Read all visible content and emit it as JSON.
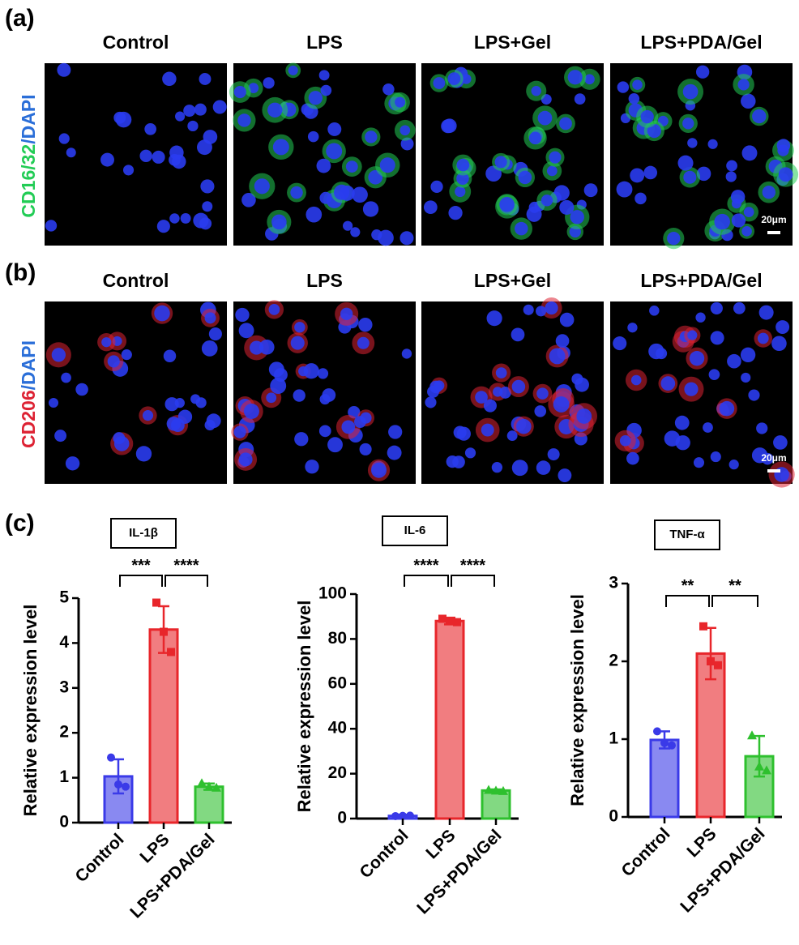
{
  "panel_a": {
    "label": "(a)",
    "columns": [
      "Control",
      "LPS",
      "LPS+Gel",
      "LPS+PDA/Gel"
    ],
    "row_label": [
      "CD16/32",
      "/DAPI"
    ],
    "scale_bar": "20μm"
  },
  "panel_b": {
    "label": "(b)",
    "columns": [
      "Control",
      "LPS",
      "LPS+Gel",
      "LPS+PDA/Gel"
    ],
    "row_label": [
      "CD206",
      "/DAPI"
    ],
    "scale_bar": "20μm"
  },
  "panel_c": {
    "label": "(c)"
  },
  "chart_data": [
    {
      "type": "bar",
      "title": "IL-1β",
      "y_label": "Relative expression level",
      "categories": [
        "Control",
        "LPS",
        "LPS+PDA/Gel"
      ],
      "values": [
        1.03,
        4.3,
        0.8
      ],
      "errors": [
        0.38,
        0.52,
        0.07
      ],
      "points": [
        [
          1.45,
          0.85,
          0.8
        ],
        [
          4.9,
          4.25,
          3.8
        ],
        [
          0.88,
          0.8,
          0.78
        ]
      ],
      "colors": [
        "#3a3ae8",
        "#e8262b",
        "#2ec02e"
      ],
      "ylim": [
        0,
        5
      ],
      "yticks": [
        0,
        1,
        2,
        3,
        4,
        5
      ],
      "significance": [
        "***",
        "****"
      ]
    },
    {
      "type": "bar",
      "title": "IL-6",
      "y_label": "Relative expression level",
      "categories": [
        "Control",
        "LPS",
        "LPS+PDA/Gel"
      ],
      "values": [
        1.2,
        88,
        12.5
      ],
      "errors": [
        0.5,
        1.5,
        0.5
      ],
      "points": [
        [
          1.1,
          1.2,
          1.3
        ],
        [
          89,
          88,
          87.5
        ],
        [
          12.8,
          12.5,
          12.3
        ]
      ],
      "colors": [
        "#3a3ae8",
        "#e8262b",
        "#2ec02e"
      ],
      "ylim": [
        0,
        100
      ],
      "yticks": [
        0,
        20,
        40,
        60,
        80,
        100
      ],
      "significance": [
        "****",
        "****"
      ]
    },
    {
      "type": "bar",
      "title": "TNF-α",
      "y_label": "Relative expression level",
      "categories": [
        "Control",
        "LPS",
        "LPS+PDA/Gel"
      ],
      "values": [
        0.99,
        2.1,
        0.78
      ],
      "errors": [
        0.11,
        0.33,
        0.26
      ],
      "points": [
        [
          1.1,
          0.95,
          0.92
        ],
        [
          2.45,
          2.0,
          1.95
        ],
        [
          1.05,
          0.65,
          0.6
        ]
      ],
      "colors": [
        "#3a3ae8",
        "#e8262b",
        "#2ec02e"
      ],
      "ylim": [
        0,
        3
      ],
      "yticks": [
        0,
        1,
        2,
        3
      ],
      "significance": [
        "**",
        "**"
      ]
    }
  ]
}
